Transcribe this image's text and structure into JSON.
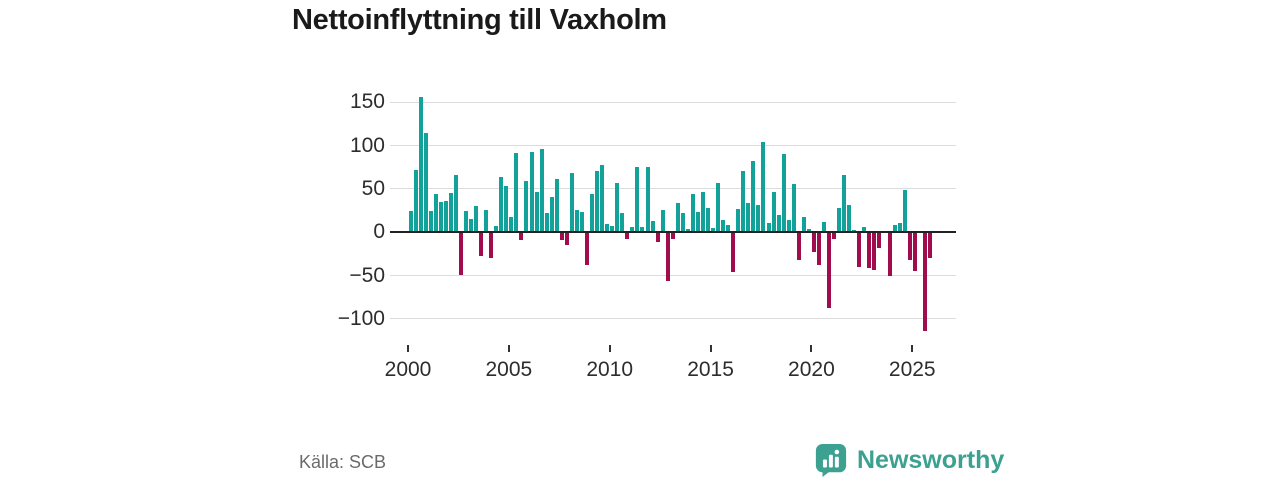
{
  "title": "Nettoinflyttning till Vaxholm",
  "source": "Källa: SCB",
  "brand": {
    "name": "Newsworthy",
    "color": "#3da191"
  },
  "colors": {
    "positive": "#12a29a",
    "negative": "#a10d4c",
    "grid": "#dcdcdc",
    "axis": "#222222",
    "tick_text": "#2d2d2d",
    "title_text": "#1a1a1a",
    "source_text": "#6b6b6b"
  },
  "chart_data": {
    "type": "bar",
    "title": "Nettoinflyttning till Vaxholm",
    "xlabel": "",
    "ylabel": "",
    "frequency": "quarterly",
    "start": "2000Q1",
    "end": "2025Q4",
    "grid": true,
    "legend": false,
    "ylim": [
      -131,
      165
    ],
    "y_ticks": [
      150,
      100,
      50,
      0,
      -50,
      -100
    ],
    "y_tick_labels": [
      "150",
      "100",
      "50",
      "0",
      "−50",
      "−100"
    ],
    "x_tick_years": [
      2000,
      2005,
      2010,
      2015,
      2020,
      2025
    ],
    "x_tick_labels": [
      "2000",
      "2005",
      "2010",
      "2015",
      "2020",
      "2025"
    ],
    "values": [
      24,
      71,
      155,
      114,
      24,
      44,
      34,
      35,
      45,
      66,
      -50,
      24,
      15,
      30,
      -28,
      25,
      -30,
      7,
      63,
      53,
      17,
      91,
      -10,
      58,
      92,
      46,
      95,
      22,
      40,
      61,
      -10,
      -15,
      68,
      25,
      23,
      -38,
      44,
      70,
      77,
      9,
      7,
      56,
      22,
      -9,
      5,
      75,
      5,
      75,
      12,
      -12,
      25,
      -57,
      -9,
      33,
      22,
      3,
      44,
      23,
      46,
      27,
      4,
      56,
      14,
      8,
      -46,
      26,
      70,
      33,
      82,
      31,
      103,
      10,
      46,
      19,
      90,
      14,
      55,
      -33,
      17,
      3,
      -24,
      -38,
      11,
      -88,
      -9,
      27,
      65,
      31,
      2,
      -41,
      5,
      -42,
      -44,
      -19,
      0,
      -51,
      8,
      10,
      48,
      -33,
      -45,
      0,
      -115,
      -30
    ]
  }
}
